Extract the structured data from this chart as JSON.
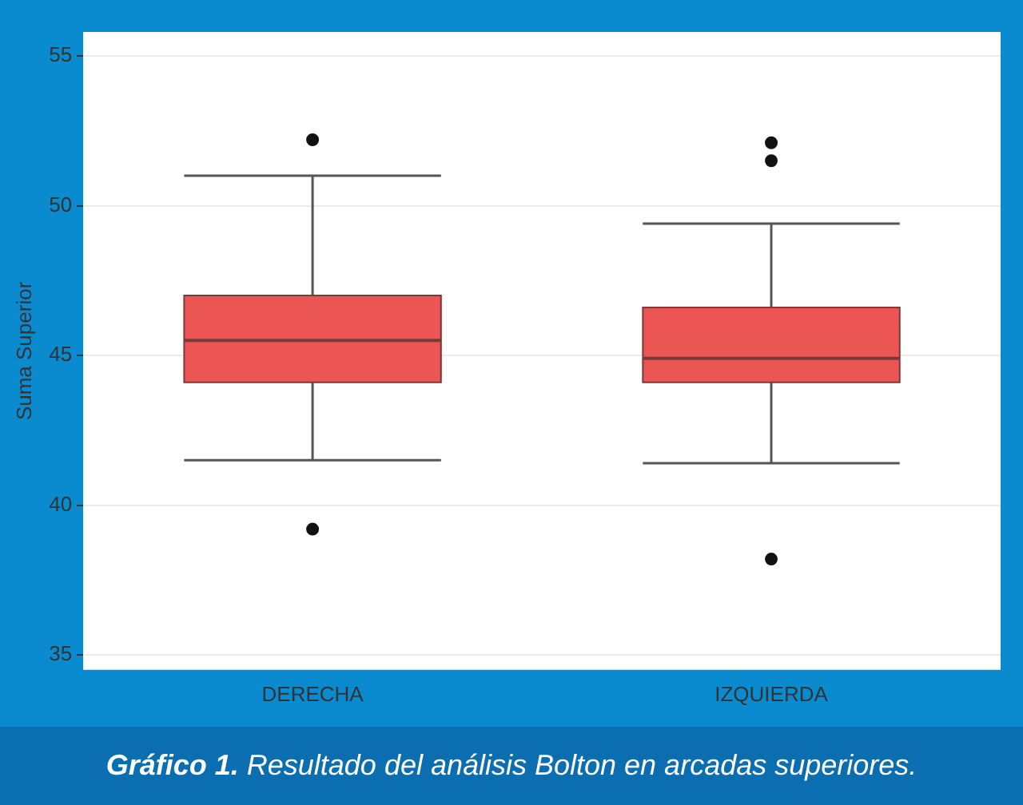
{
  "chart_data": {
    "type": "box",
    "ylabel": "Suma Superior",
    "categories": [
      "DERECHA",
      "IZQUIERDA"
    ],
    "color": "#eb5553",
    "boxes": [
      {
        "low": 41.5,
        "q1": 44.1,
        "median": 45.5,
        "q3": 47.0,
        "high": 51.0,
        "outliers": [
          52.2,
          39.2
        ]
      },
      {
        "low": 41.4,
        "q1": 44.1,
        "median": 44.9,
        "q3": 46.6,
        "high": 49.4,
        "outliers": [
          52.1,
          51.5,
          38.2
        ]
      }
    ],
    "ylim": [
      34.5,
      55.8
    ],
    "yticks": [
      35,
      40,
      45,
      50,
      55
    ],
    "grid": "y",
    "legend": false,
    "annotations": [
      "Gráfico 1. Resultado del análisis Bolton en arcadas superiores."
    ]
  }
}
